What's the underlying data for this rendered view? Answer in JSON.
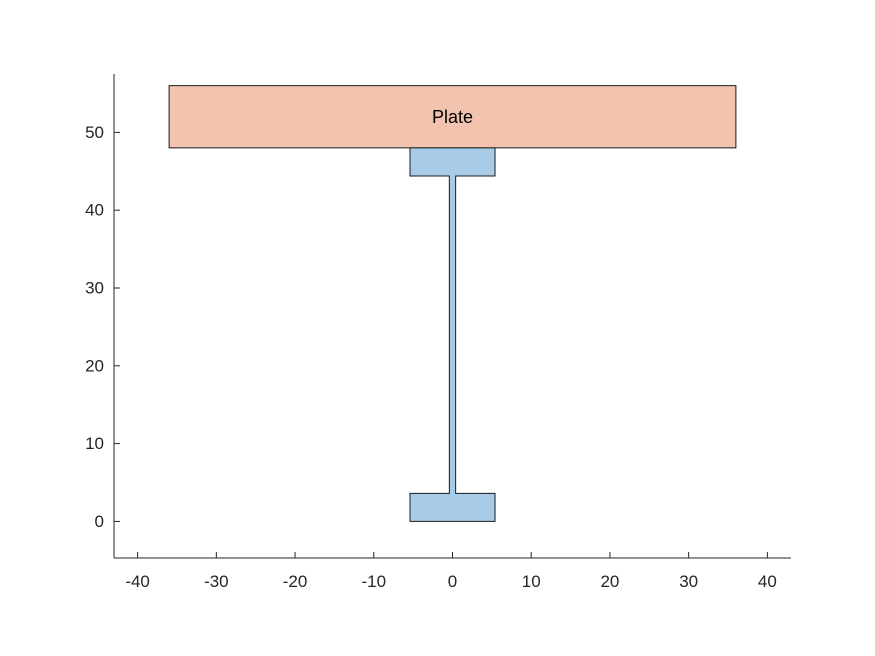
{
  "chart_data": {
    "type": "diagram",
    "x_ticks": [
      -40,
      -30,
      -20,
      -10,
      0,
      10,
      20,
      30,
      40
    ],
    "y_ticks": [
      0,
      10,
      20,
      30,
      40,
      50
    ],
    "xlim": [
      -43,
      43
    ],
    "ylim": [
      -4.7,
      57.5
    ],
    "grid": false,
    "shapes": [
      {
        "name": "plate",
        "label": "Plate",
        "color": "#f2c4b0",
        "polygon": [
          [
            -36,
            48
          ],
          [
            36,
            48
          ],
          [
            36,
            56
          ],
          [
            -36,
            56
          ]
        ]
      },
      {
        "name": "i-beam",
        "label": "",
        "color": "#a8cce8",
        "polygon": [
          [
            -5.4,
            0
          ],
          [
            5.4,
            0
          ],
          [
            5.4,
            3.6
          ],
          [
            0.4,
            3.6
          ],
          [
            0.4,
            44.4
          ],
          [
            5.4,
            44.4
          ],
          [
            5.4,
            48
          ],
          [
            -5.4,
            48
          ],
          [
            -5.4,
            44.4
          ],
          [
            -0.4,
            44.4
          ],
          [
            -0.4,
            3.6
          ],
          [
            -5.4,
            3.6
          ]
        ]
      }
    ]
  }
}
